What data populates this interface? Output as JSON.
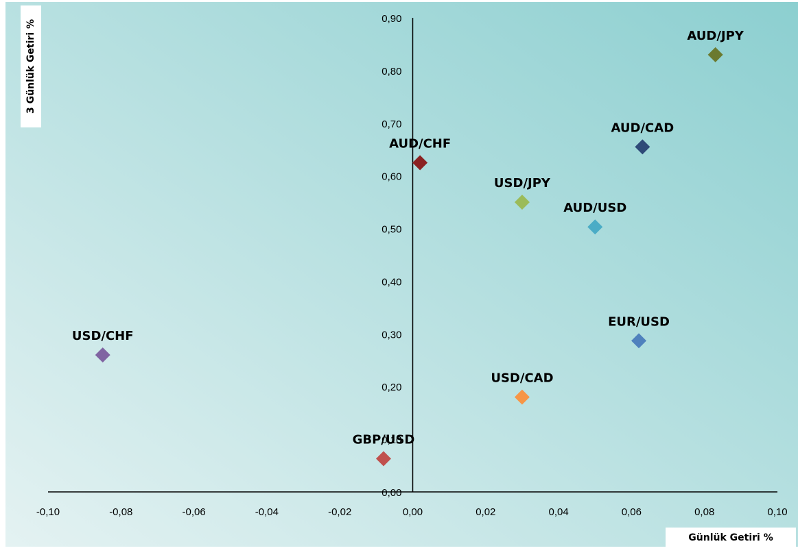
{
  "chart_data": {
    "type": "scatter",
    "xlabel": "Günlük Getiri %",
    "ylabel": "3 Günlük Getiri %",
    "xlim": [
      -0.1,
      0.1
    ],
    "ylim": [
      0.0,
      0.9
    ],
    "x_ticks": [
      "-0,10",
      "-0,08",
      "-0,06",
      "-0,04",
      "-0,02",
      "0,00",
      "0,02",
      "0,04",
      "0,06",
      "0,08",
      "0,10"
    ],
    "y_ticks": [
      "0,00",
      "0,10",
      "0,20",
      "0,30",
      "0,40",
      "0,50",
      "0,60",
      "0,70",
      "0,80",
      "0,90"
    ],
    "grid": false,
    "points": [
      {
        "label": "AUD/JPY",
        "x": 0.083,
        "y": 0.83,
        "color": "#6b7a2f"
      },
      {
        "label": "AUD/CAD",
        "x": 0.063,
        "y": 0.655,
        "color": "#2e4a78"
      },
      {
        "label": "AUD/CHF",
        "x": 0.002,
        "y": 0.625,
        "color": "#8b2222"
      },
      {
        "label": "USD/JPY",
        "x": 0.03,
        "y": 0.55,
        "color": "#9bbb59"
      },
      {
        "label": "AUD/USD",
        "x": 0.05,
        "y": 0.503,
        "color": "#4bacc6"
      },
      {
        "label": "EUR/USD",
        "x": 0.062,
        "y": 0.287,
        "color": "#4f81bd"
      },
      {
        "label": "USD/CHF",
        "x": -0.085,
        "y": 0.26,
        "color": "#8064a2"
      },
      {
        "label": "USD/CAD",
        "x": 0.03,
        "y": 0.18,
        "color": "#f79646"
      },
      {
        "label": "GBP/USD",
        "x": -0.008,
        "y": 0.063,
        "color": "#c0504d"
      }
    ],
    "background_colors": [
      "#e2f0f0",
      "#8ccfd0"
    ]
  }
}
